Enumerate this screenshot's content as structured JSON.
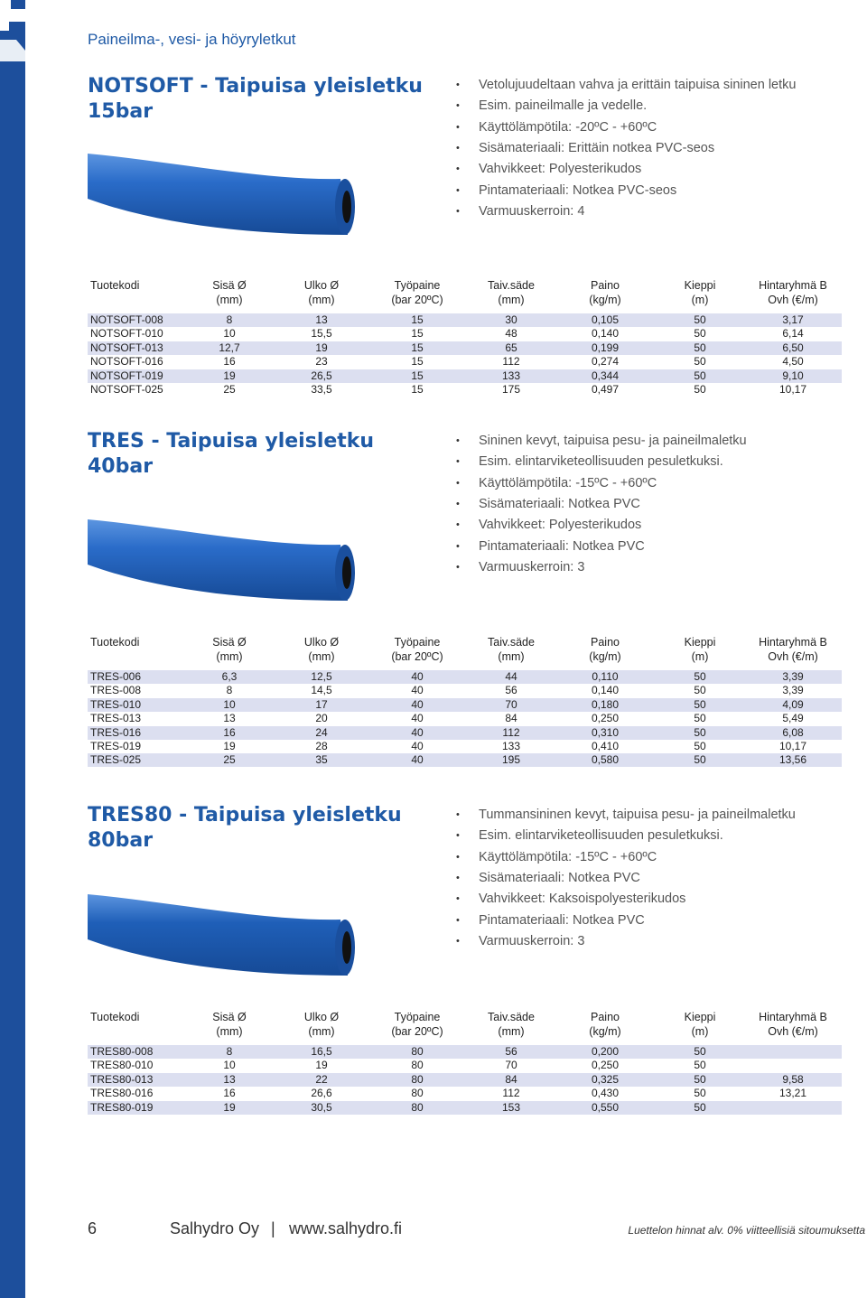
{
  "header": {
    "title": "Paineilma-, vesi- ja höyryletkut"
  },
  "sections": [
    {
      "title": [
        "NOTSOFT - Taipuisa yleisletku",
        "15bar"
      ],
      "bullets": [
        "Vetolujuudeltaan vahva ja erittäin taipuisa sininen letku",
        "Esim. paineilmalle ja vedelle.",
        "Käyttölämpötila: -20ºC - +60ºC",
        "Sisämateriaali: Erittäin notkea PVC-seos",
        "Vahvikkeet: Polyesterikudos",
        "Pintamateriaali: Notkea PVC-seos",
        "Varmuuskerroin: 4"
      ],
      "table": {
        "headers": [
          [
            "Tuotekodi"
          ],
          [
            "Sisä Ø",
            "(mm)"
          ],
          [
            "Ulko Ø",
            "(mm)"
          ],
          [
            "Työpaine",
            "(bar 20ºC)"
          ],
          [
            "Taiv.säde",
            "(mm)"
          ],
          [
            "Paino",
            "(kg/m)"
          ],
          [
            "Kieppi",
            "(m)"
          ],
          [
            "Hintaryhmä B",
            "Ovh (€/m)"
          ]
        ],
        "rows": [
          [
            "NOTSOFT-008",
            "8",
            "13",
            "15",
            "30",
            "0,105",
            "50",
            "3,17"
          ],
          [
            "NOTSOFT-010",
            "10",
            "15,5",
            "15",
            "48",
            "0,140",
            "50",
            "6,14"
          ],
          [
            "NOTSOFT-013",
            "12,7",
            "19",
            "15",
            "65",
            "0,199",
            "50",
            "6,50"
          ],
          [
            "NOTSOFT-016",
            "16",
            "23",
            "15",
            "112",
            "0,274",
            "50",
            "4,50"
          ],
          [
            "NOTSOFT-019",
            "19",
            "26,5",
            "15",
            "133",
            "0,344",
            "50",
            "9,10"
          ],
          [
            "NOTSOFT-025",
            "25",
            "33,5",
            "15",
            "175",
            "0,497",
            "50",
            "10,17"
          ]
        ]
      }
    },
    {
      "title": [
        "TRES - Taipuisa yleisletku",
        "40bar"
      ],
      "bullets": [
        "Sininen kevyt, taipuisa pesu- ja paineilmaletku",
        "Esim. elintarviketeollisuuden pesuletkuksi.",
        "Käyttölämpötila: -15ºC - +60ºC",
        "Sisämateriaali: Notkea PVC",
        "Vahvikkeet: Polyesterikudos",
        "Pintamateriaali: Notkea PVC",
        "Varmuuskerroin: 3"
      ],
      "table": {
        "headers": [
          [
            "Tuotekodi"
          ],
          [
            "Sisä Ø",
            "(mm)"
          ],
          [
            "Ulko Ø",
            "(mm)"
          ],
          [
            "Työpaine",
            "(bar 20ºC)"
          ],
          [
            "Taiv.säde",
            "(mm)"
          ],
          [
            "Paino",
            "(kg/m)"
          ],
          [
            "Kieppi",
            "(m)"
          ],
          [
            "Hintaryhmä B",
            "Ovh (€/m)"
          ]
        ],
        "rows": [
          [
            "TRES-006",
            "6,3",
            "12,5",
            "40",
            "44",
            "0,110",
            "50",
            "3,39"
          ],
          [
            "TRES-008",
            "8",
            "14,5",
            "40",
            "56",
            "0,140",
            "50",
            "3,39"
          ],
          [
            "TRES-010",
            "10",
            "17",
            "40",
            "70",
            "0,180",
            "50",
            "4,09"
          ],
          [
            "TRES-013",
            "13",
            "20",
            "40",
            "84",
            "0,250",
            "50",
            "5,49"
          ],
          [
            "TRES-016",
            "16",
            "24",
            "40",
            "112",
            "0,310",
            "50",
            "6,08"
          ],
          [
            "TRES-019",
            "19",
            "28",
            "40",
            "133",
            "0,410",
            "50",
            "10,17"
          ],
          [
            "TRES-025",
            "25",
            "35",
            "40",
            "195",
            "0,580",
            "50",
            "13,56"
          ]
        ]
      }
    },
    {
      "title": [
        "TRES80 - Taipuisa yleisletku",
        "80bar"
      ],
      "bullets": [
        "Tummansininen kevyt, taipuisa pesu- ja paineilmaletku",
        "Esim. elintarviketeollisuuden pesuletkuksi.",
        "Käyttölämpötila: -15ºC - +60ºC",
        "Sisämateriaali: Notkea PVC",
        "Vahvikkeet: Kaksoispolyesterikudos",
        "Pintamateriaali: Notkea PVC",
        "Varmuuskerroin: 3"
      ],
      "table": {
        "headers": [
          [
            "Tuotekodi"
          ],
          [
            "Sisä Ø",
            "(mm)"
          ],
          [
            "Ulko Ø",
            "(mm)"
          ],
          [
            "Työpaine",
            "(bar 20ºC)"
          ],
          [
            "Taiv.säde",
            "(mm)"
          ],
          [
            "Paino",
            "(kg/m)"
          ],
          [
            "Kieppi",
            "(m)"
          ],
          [
            "Hintaryhmä B",
            "Ovh (€/m)"
          ]
        ],
        "rows": [
          [
            "TRES80-008",
            "8",
            "16,5",
            "80",
            "56",
            "0,200",
            "50",
            null
          ],
          [
            "TRES80-010",
            "10",
            "19",
            "80",
            "70",
            "0,250",
            "50",
            null
          ],
          [
            "TRES80-013",
            "13",
            "22",
            "80",
            "84",
            "0,325",
            "50",
            "9,58"
          ],
          [
            "TRES80-016",
            "16",
            "26,6",
            "80",
            "112",
            "0,430",
            "50",
            "13,21"
          ],
          [
            "TRES80-019",
            "19",
            "30,5",
            "80",
            "153",
            "0,550",
            "50",
            null
          ]
        ]
      }
    }
  ],
  "footer": {
    "page": "6",
    "company": "Salhydro Oy",
    "separator": "|",
    "url": "www.salhydro.fi",
    "note": "Luettelon hinnat alv. 0% viitteellisiä sitoumuksetta"
  }
}
